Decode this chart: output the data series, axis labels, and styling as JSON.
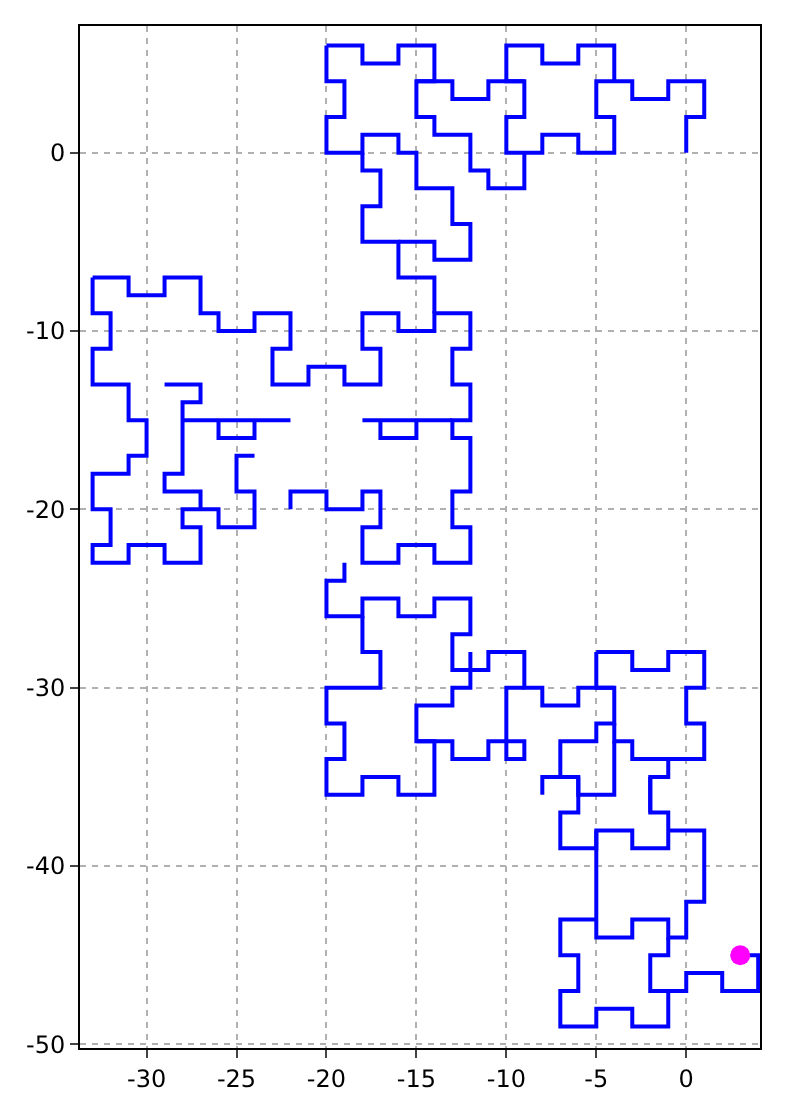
{
  "chart_data": {
    "type": "line",
    "xlim": [
      -33.7,
      4.1
    ],
    "ylim": [
      -50.2,
      7.1
    ],
    "xticks": [
      -30,
      -25,
      -20,
      -15,
      -10,
      -5,
      0
    ],
    "yticks": [
      -50,
      -40,
      -30,
      -20,
      -10,
      0
    ],
    "grid": true,
    "line_style": "solid",
    "series": [
      {
        "color": "#0000ff",
        "marker": "none",
        "x": [
          0,
          0,
          1,
          1,
          -1,
          -1,
          -3,
          -3,
          -5,
          -5,
          -4,
          -4,
          -6,
          -6,
          -8,
          -8,
          -10,
          -10,
          -9,
          -9,
          -10,
          -10,
          -8,
          -8,
          -6,
          -6,
          -4,
          -4,
          null,
          -9,
          -9,
          -11,
          -11,
          -12,
          -12,
          -14,
          -14,
          -15,
          -15,
          -13,
          -13,
          -11,
          -11,
          -9,
          null,
          -20,
          -18,
          -18,
          -16,
          -16,
          -14,
          -14,
          -15,
          null,
          -20,
          -20,
          -19,
          -19,
          -20,
          -20,
          -18,
          -18,
          -16,
          -16,
          -15,
          -15,
          -13,
          -13,
          -12,
          -12,
          -14,
          -14,
          -16,
          null,
          -18,
          -18,
          -17,
          -17,
          -18,
          -18,
          -16,
          -16,
          -14,
          -14,
          null,
          -33,
          -31,
          -31,
          -29,
          -29,
          -27,
          -27,
          -26,
          -26,
          -24,
          -24,
          -22,
          -22,
          -23,
          -23,
          -21,
          -21,
          -19,
          -19,
          -17,
          -17,
          -18,
          -18,
          -16,
          -16,
          -14,
          -14,
          -12,
          -12,
          -13,
          -13,
          -12,
          -12,
          -13,
          -13,
          -12,
          -12,
          -13,
          -13,
          -12,
          -12,
          -14,
          -14,
          -16,
          -16,
          -18,
          -18,
          -17,
          -17,
          -18,
          -18,
          -20,
          -20,
          -22,
          -22,
          null,
          -33,
          -33,
          -32,
          -32,
          -33,
          -33,
          -31,
          -31,
          -30,
          -30,
          -31,
          -31,
          -33,
          -33,
          -32,
          -32,
          -33,
          -33,
          -31,
          -31,
          -29,
          -29,
          -27,
          -27,
          -28,
          -28,
          -26,
          -26,
          -24,
          -24,
          -25,
          -25,
          -24,
          null,
          -29,
          -27,
          -27,
          -28,
          -28,
          -29,
          -29,
          -27,
          -27,
          null,
          -28,
          -22,
          null,
          -26,
          -26,
          -24,
          -24,
          null,
          -18,
          -13,
          null,
          -17,
          -17,
          -15,
          -15,
          null,
          -19,
          -19,
          -20,
          -20,
          -18,
          -18,
          -16,
          -16,
          -14,
          -14,
          -12,
          -12,
          -13,
          -13,
          -11,
          -11,
          -9,
          -9,
          -8,
          -8,
          -6,
          -6,
          -4,
          -4,
          -5,
          -5,
          -7,
          -7,
          -8,
          -8,
          null,
          -18,
          -18,
          -17,
          -17,
          -20,
          -20,
          -19,
          -19,
          -20,
          -20,
          -18,
          -18,
          -16,
          -16,
          -14,
          -14,
          -15,
          -15,
          -13,
          -13,
          -12,
          -12,
          null,
          -15,
          -13,
          -13,
          -11,
          -11,
          -9,
          -9,
          -10,
          -10,
          -9,
          null,
          -5,
          -3,
          -3,
          -1,
          -1,
          1,
          1,
          0,
          0,
          1,
          1,
          -1,
          -1,
          -2,
          -2,
          null,
          -5,
          -5,
          -4,
          null,
          -4,
          -4,
          -3,
          -3,
          -1,
          null,
          -4,
          -4,
          -6,
          -6,
          -7,
          null,
          -2,
          -2,
          -1,
          -1,
          -3,
          -3,
          -5,
          -5,
          -7,
          -7,
          -6,
          -6,
          null,
          -5,
          -5,
          -3,
          -3,
          -1,
          -1,
          0,
          0,
          1,
          1,
          -1,
          null,
          -5,
          -7,
          -7,
          -6,
          -6,
          -7,
          -7,
          -5,
          -5,
          -3,
          -3,
          -1,
          -1,
          -2,
          -2,
          -1,
          -1,
          null,
          -1,
          0,
          0,
          2,
          2,
          4,
          4,
          3
        ],
        "values": [
          0,
          2,
          2,
          4,
          4,
          3,
          3,
          4,
          4,
          2,
          2,
          0,
          0,
          1,
          1,
          0,
          0,
          2,
          2,
          4,
          4,
          6,
          6,
          5,
          5,
          6,
          6,
          4,
          null,
          0,
          -2,
          -2,
          -1,
          -1,
          1,
          1,
          2,
          2,
          4,
          4,
          3,
          3,
          4,
          4,
          null,
          6,
          6,
          5,
          5,
          6,
          6,
          4,
          4,
          null,
          6,
          4,
          4,
          2,
          2,
          0,
          0,
          1,
          1,
          0,
          0,
          -2,
          -2,
          -4,
          -4,
          -6,
          -6,
          -5,
          -5,
          null,
          0,
          -1,
          -1,
          -3,
          -3,
          -5,
          -5,
          -7,
          -7,
          -9,
          null,
          -7,
          -7,
          -8,
          -8,
          -7,
          -7,
          -9,
          -9,
          -10,
          -10,
          -9,
          -9,
          -11,
          -11,
          -13,
          -13,
          -12,
          -12,
          -13,
          -13,
          -11,
          -11,
          -9,
          -9,
          -10,
          -10,
          -9,
          -9,
          -11,
          -11,
          -13,
          -13,
          -15,
          -15,
          -16,
          -16,
          -19,
          -19,
          -21,
          -21,
          -23,
          -23,
          -22,
          -22,
          -23,
          -23,
          -21,
          -21,
          -19,
          -19,
          -20,
          -20,
          -19,
          -19,
          -20,
          null,
          -7,
          -9,
          -9,
          -11,
          -11,
          -13,
          -13,
          -15,
          -15,
          -17,
          -17,
          -18,
          -18,
          -20,
          -20,
          -22,
          -22,
          -23,
          -23,
          -22,
          -22,
          -23,
          -23,
          -21,
          -21,
          -20,
          -20,
          -21,
          -21,
          -19,
          -19,
          -17,
          -17,
          null,
          -13,
          -13,
          -14,
          -14,
          -18,
          -18,
          -19,
          -19,
          -20,
          null,
          -15,
          -15,
          null,
          -15,
          -16,
          -16,
          -15,
          null,
          -15,
          -15,
          null,
          -15,
          -16,
          -16,
          -15,
          null,
          -23,
          -24,
          -24,
          -26,
          -26,
          -25,
          -25,
          -26,
          -26,
          -25,
          -25,
          -27,
          -27,
          -29,
          -29,
          -28,
          -28,
          -30,
          -30,
          -31,
          -31,
          -30,
          -30,
          -32,
          -32,
          -33,
          -33,
          -35,
          -35,
          -36,
          null,
          -26,
          -28,
          -28,
          -30,
          -30,
          -32,
          -32,
          -34,
          -34,
          -36,
          -36,
          -35,
          -35,
          -36,
          -36,
          -33,
          -33,
          -31,
          -31,
          -30,
          -30,
          -28,
          null,
          -33,
          -33,
          -34,
          -34,
          -33,
          -33,
          -34,
          -34,
          -30,
          -30,
          null,
          -28,
          -28,
          -29,
          -29,
          -28,
          -28,
          -30,
          -30,
          -32,
          -32,
          -34,
          -34,
          -35,
          -35,
          -37,
          null,
          -28,
          -30,
          -30,
          null,
          -32,
          -33,
          -33,
          -34,
          -34,
          null,
          -33,
          -36,
          -36,
          -35,
          -35,
          null,
          -35,
          -37,
          -37,
          -39,
          -39,
          -38,
          -38,
          -39,
          -39,
          -37,
          -37,
          -35,
          null,
          -38,
          -44,
          -44,
          -43,
          -43,
          -44,
          -44,
          -42,
          -42,
          -38,
          -38,
          null,
          -43,
          -43,
          -45,
          -45,
          -47,
          -47,
          -49,
          -49,
          -48,
          -48,
          -49,
          -49,
          -47,
          -47,
          -45,
          -45,
          -44,
          null,
          -47,
          -47,
          -46,
          -46,
          -47,
          -47,
          -45,
          -45
        ]
      },
      {
        "type": "scatter",
        "color": "#ff00ff",
        "marker": "circle",
        "x": [
          3
        ],
        "values": [
          -45
        ]
      }
    ]
  }
}
